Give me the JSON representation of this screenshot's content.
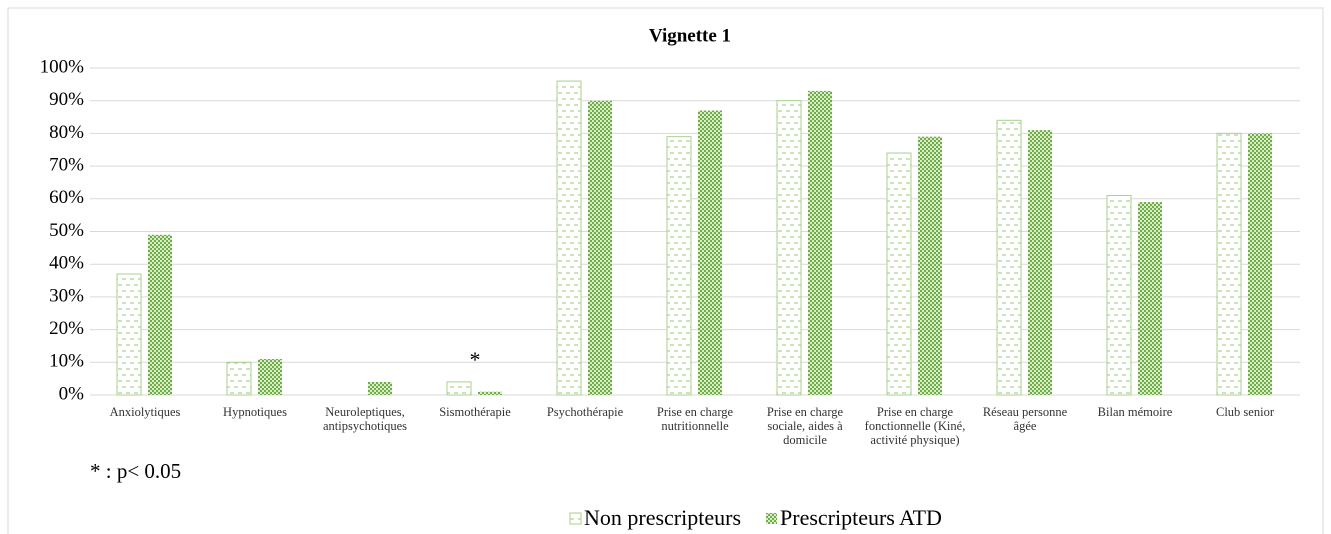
{
  "chart_data": {
    "type": "bar",
    "title": "Vignette 1",
    "categories": [
      "Anxiolytiques",
      "Hypnotiques",
      "Neuroleptiques, antipsychotiques",
      "Sismothérapie",
      "Psychothérapie",
      "Prise en charge nutritionnelle",
      "Prise en charge sociale, aides à domicile",
      "Prise en charge fonctionnelle (Kiné, activité physique)",
      "Réseau personne âgée",
      "Bilan mémoire",
      "Club senior"
    ],
    "series": [
      {
        "name": "Non prescripteurs",
        "color": "#a9d18e",
        "values": [
          37,
          10,
          0,
          4,
          96,
          79,
          90,
          74,
          84,
          61,
          80
        ]
      },
      {
        "name": "Prescripteurs ATD",
        "color": "#70ad47",
        "values": [
          49,
          11,
          4,
          1,
          90,
          87,
          93,
          79,
          81,
          59,
          80
        ]
      }
    ],
    "ylim": [
      0,
      100
    ],
    "yticks": [
      {
        "value": 0,
        "label": "0%"
      },
      {
        "value": 10,
        "label": "10%"
      },
      {
        "value": 20,
        "label": "20%"
      },
      {
        "value": 30,
        "label": "30%"
      },
      {
        "value": 40,
        "label": "40%"
      },
      {
        "value": 50,
        "label": "50%"
      },
      {
        "value": 60,
        "label": "60%"
      },
      {
        "value": 70,
        "label": "70%"
      },
      {
        "value": 80,
        "label": "80%"
      },
      {
        "value": 90,
        "label": "90%"
      },
      {
        "value": 100,
        "label": "100%"
      }
    ],
    "grid": true,
    "annotations": [
      {
        "text": "*",
        "category": "Sismothérapie"
      }
    ],
    "note": "* : p< 0.05",
    "legend": "bottom"
  }
}
